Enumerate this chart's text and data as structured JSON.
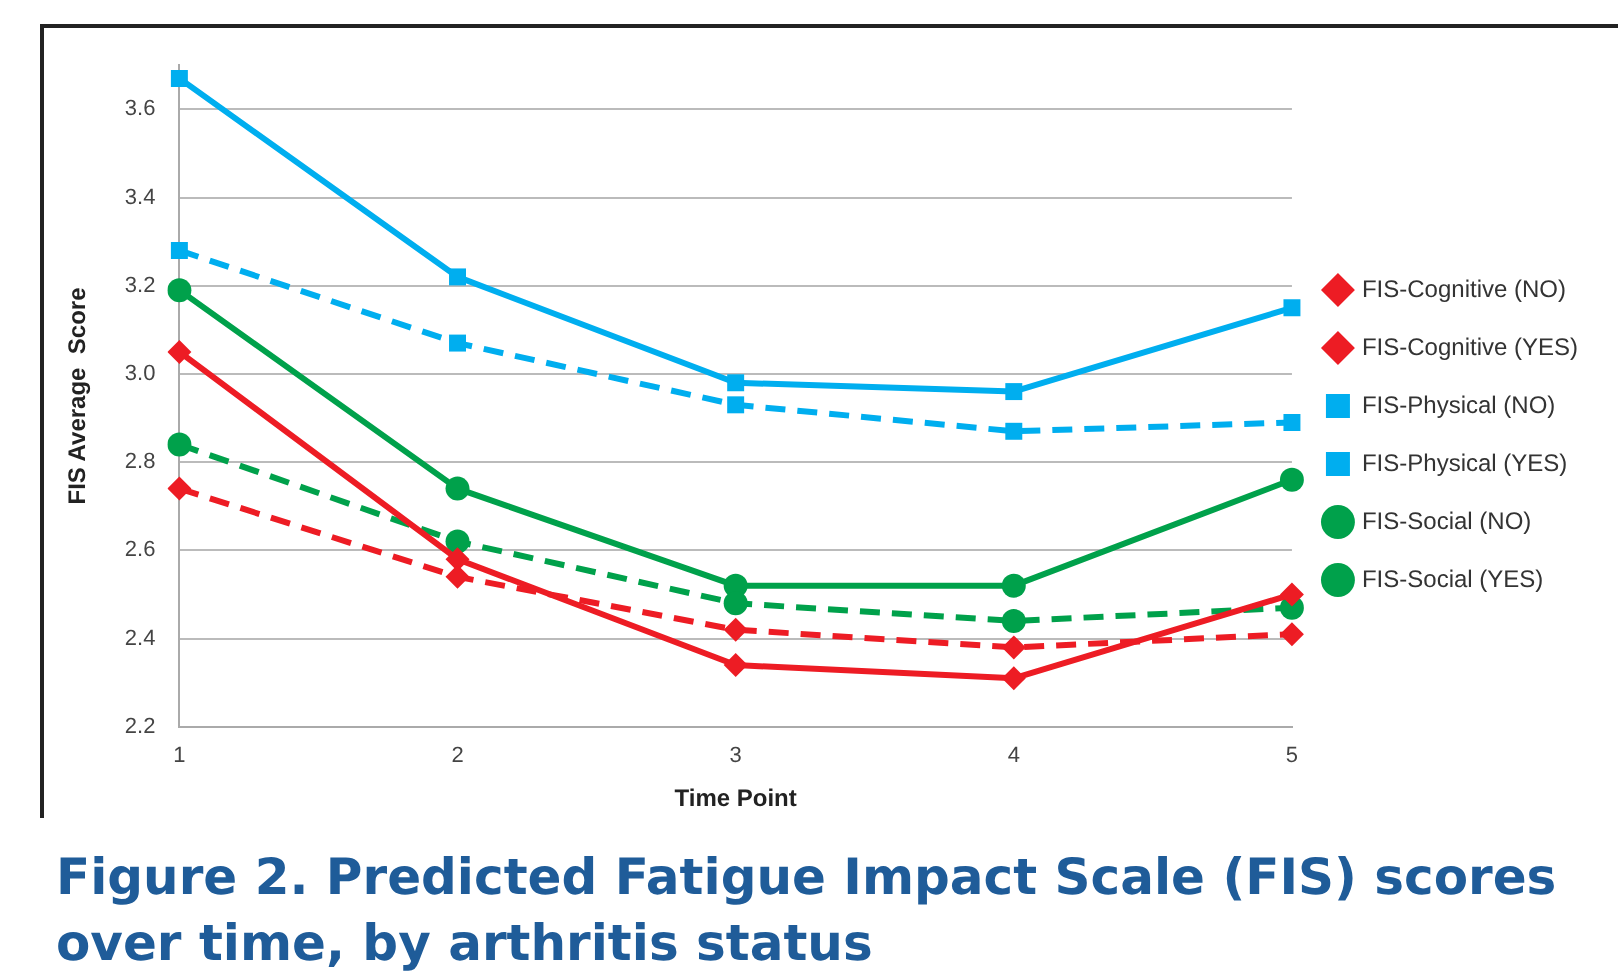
{
  "chart_data": {
    "type": "line",
    "title": "Figure 2. Predicted Fatigue Impact Scale (FIS) scores over time, by arthritis status",
    "xlabel": "Time Point",
    "ylabel": "FIS Average  Score",
    "categories": [
      "1",
      "2",
      "3",
      "4",
      "5"
    ],
    "series": [
      {
        "name": "FIS-Cognitive (NO)",
        "color": "#ed1c24",
        "marker": "diamond",
        "line_style": "dashed",
        "values": [
          2.74,
          2.54,
          2.42,
          2.38,
          2.41
        ]
      },
      {
        "name": "FIS-Cognitive (YES)",
        "color": "#ed1c24",
        "marker": "diamond",
        "line_style": "solid",
        "values": [
          3.05,
          2.58,
          2.34,
          2.31,
          2.5
        ]
      },
      {
        "name": "FIS-Physical (NO)",
        "color": "#00aeef",
        "marker": "square",
        "line_style": "dashed",
        "values": [
          3.28,
          3.07,
          2.93,
          2.87,
          2.89
        ]
      },
      {
        "name": "FIS-Physical (YES)",
        "color": "#00aeef",
        "marker": "square",
        "line_style": "solid",
        "values": [
          3.67,
          3.22,
          2.98,
          2.96,
          3.15
        ]
      },
      {
        "name": "FIS-Social (NO)",
        "color": "#00a14b",
        "marker": "circle",
        "line_style": "dashed",
        "values": [
          2.84,
          2.62,
          2.48,
          2.44,
          2.47
        ]
      },
      {
        "name": "FIS-Social (YES)",
        "color": "#00a14b",
        "marker": "circle",
        "line_style": "solid",
        "values": [
          3.19,
          2.74,
          2.52,
          2.52,
          2.76
        ]
      }
    ],
    "ylim": [
      2.2,
      3.7
    ],
    "yticks": [
      {
        "value": 2.2,
        "label": "2.2"
      },
      {
        "value": 2.4,
        "label": "2.4"
      },
      {
        "value": 2.6,
        "label": "2.6"
      },
      {
        "value": 2.8,
        "label": "2.8"
      },
      {
        "value": 3.0,
        "label": "3.0"
      },
      {
        "value": 3.2,
        "label": "3.2"
      },
      {
        "value": 3.4,
        "label": "3.4"
      },
      {
        "value": 3.6,
        "label": "3.6"
      }
    ],
    "grid": "y",
    "legend": "right"
  }
}
